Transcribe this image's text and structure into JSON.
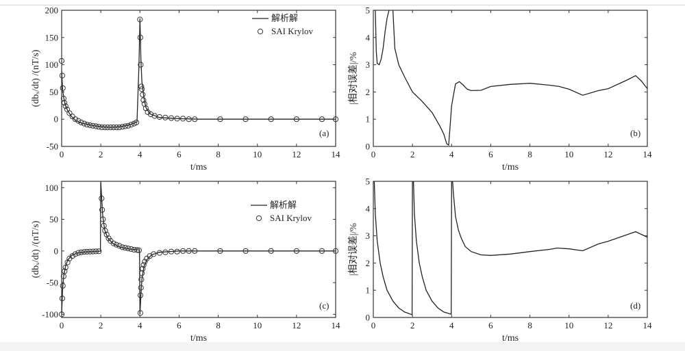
{
  "chart_data": [
    {
      "panel_label": "(a)",
      "type": "line",
      "xlabel": "t/ms",
      "ylabel": "(dbₓ/dt) /(nT/s)",
      "xlim": [
        0,
        14
      ],
      "ylim": [
        -50,
        200
      ],
      "xticks": [
        0,
        2,
        4,
        6,
        8,
        10,
        12,
        14
      ],
      "yticks": [
        -50,
        0,
        50,
        100,
        150,
        200
      ],
      "legend_position": "top-right",
      "series": [
        {
          "name": "解析解",
          "style": "line",
          "x": [
            0,
            0.05,
            0.1,
            0.2,
            0.3,
            0.5,
            0.7,
            1.0,
            1.5,
            2.0,
            2.5,
            3.0,
            3.5,
            3.85,
            3.95,
            4.0,
            4.05,
            4.1,
            4.2,
            4.3,
            4.5,
            5.0,
            6.0,
            7.0,
            8.0,
            10.0,
            12.0,
            14.0
          ],
          "y": [
            90,
            55,
            40,
            25,
            16,
            5,
            -2,
            -7,
            -11,
            -14,
            -15,
            -14,
            -10,
            -5,
            100,
            185,
            110,
            70,
            40,
            22,
            10,
            3,
            1,
            0,
            0,
            0,
            0,
            0
          ]
        },
        {
          "name": "SAI Krylov",
          "style": "circle",
          "x": [
            0,
            0.03,
            0.06,
            0.1,
            0.14,
            0.2,
            0.28,
            0.4,
            0.55,
            0.7,
            0.85,
            1.0,
            1.15,
            1.3,
            1.45,
            1.6,
            1.75,
            1.9,
            2.05,
            2.2,
            2.35,
            2.5,
            2.65,
            2.8,
            2.95,
            3.1,
            3.25,
            3.4,
            3.55,
            3.7,
            3.82,
            4.0,
            4.02,
            4.04,
            4.07,
            4.1,
            4.14,
            4.18,
            4.23,
            4.3,
            4.4,
            4.55,
            4.75,
            5.0,
            5.3,
            5.6,
            5.9,
            6.2,
            6.5,
            6.8,
            8.1,
            9.4,
            10.7,
            12.0,
            13.3,
            14.0
          ],
          "y": [
            107,
            80,
            57,
            38,
            30,
            24,
            18,
            11,
            5,
            0,
            -3,
            -6,
            -8,
            -10,
            -11,
            -12,
            -13,
            -14,
            -15,
            -15,
            -15,
            -15,
            -15,
            -15,
            -15,
            -14,
            -13,
            -12,
            -10,
            -8,
            -6,
            183,
            150,
            100,
            60,
            55,
            45,
            35,
            28,
            20,
            13,
            9,
            6,
            4,
            3,
            2,
            1,
            1,
            0,
            0,
            0,
            0,
            0,
            0,
            0,
            0
          ]
        }
      ]
    },
    {
      "panel_label": "(b)",
      "type": "line",
      "xlabel": "t/ms",
      "ylabel": "|相对误差|/%",
      "xlim": [
        0,
        14
      ],
      "ylim": [
        0,
        5
      ],
      "xticks": [
        0,
        2,
        4,
        6,
        8,
        10,
        12,
        14
      ],
      "yticks": [
        0,
        1,
        2,
        3,
        4,
        5
      ],
      "series": [
        {
          "style": "line",
          "segments": [
            {
              "x": [
                0.1,
                0.15,
                0.2,
                0.3,
                0.4,
                0.5,
                0.6,
                0.7,
                0.8,
                0.85
              ],
              "y": [
                5.0,
                3.5,
                3.05,
                3.0,
                3.2,
                3.6,
                4.2,
                4.7,
                5.0,
                5.0
              ]
            },
            {
              "x": [
                1.0,
                1.1,
                1.3,
                1.6,
                2.0,
                2.5,
                3.0,
                3.4,
                3.6,
                3.75,
                3.85,
                4.0,
                4.2,
                4.4,
                4.6,
                4.8,
                5.0,
                5.5,
                6.0,
                7.0,
                8.0,
                9.0,
                9.5,
                10.0,
                10.7,
                11.5,
                12.0,
                13.0,
                13.4,
                13.7,
                14.0
              ],
              "y": [
                5.0,
                3.6,
                3.0,
                2.55,
                2.0,
                1.65,
                1.25,
                0.75,
                0.45,
                0.1,
                0.05,
                1.5,
                2.3,
                2.38,
                2.25,
                2.1,
                2.05,
                2.06,
                2.2,
                2.28,
                2.32,
                2.25,
                2.2,
                2.1,
                1.88,
                2.05,
                2.12,
                2.45,
                2.6,
                2.4,
                2.12
              ]
            }
          ]
        }
      ]
    },
    {
      "panel_label": "(c)",
      "type": "line",
      "xlabel": "t/ms",
      "ylabel": "(dbₓ/dt) /(nT/s)",
      "xlim": [
        0,
        14
      ],
      "ylim": [
        -105,
        110
      ],
      "xticks": [
        0,
        2,
        4,
        6,
        8,
        10,
        12,
        14
      ],
      "yticks": [
        -100,
        -50,
        0,
        50,
        100
      ],
      "legend_position": "top-right",
      "series": [
        {
          "name": "解析解",
          "style": "line",
          "x": [
            0,
            0.05,
            0.1,
            0.2,
            0.3,
            0.5,
            0.8,
            1.2,
            1.6,
            1.98,
            2.0,
            2.05,
            2.1,
            2.2,
            2.35,
            2.6,
            3.0,
            3.5,
            3.98,
            4.0,
            4.05,
            4.1,
            4.2,
            4.35,
            4.6,
            5.0,
            6.0,
            8.0,
            10.0,
            14.0
          ],
          "y": [
            -100,
            -60,
            -40,
            -24,
            -15,
            -7,
            -3,
            -1.5,
            -0.8,
            -0.3,
            110,
            80,
            55,
            33,
            21,
            12,
            6,
            3,
            1.5,
            -100,
            -70,
            -45,
            -25,
            -14,
            -6,
            -2,
            0,
            0,
            0,
            0
          ]
        },
        {
          "name": "SAI Krylov",
          "style": "circle",
          "x": [
            0,
            0.03,
            0.06,
            0.1,
            0.15,
            0.2,
            0.3,
            0.4,
            0.55,
            0.7,
            0.85,
            1.0,
            1.15,
            1.3,
            1.45,
            1.6,
            1.75,
            1.9,
            2.04,
            2.07,
            2.11,
            2.16,
            2.22,
            2.3,
            2.4,
            2.5,
            2.65,
            2.8,
            2.95,
            3.1,
            3.25,
            3.4,
            3.55,
            3.7,
            3.85,
            3.95,
            4.02,
            4.03,
            4.05,
            4.07,
            4.1,
            4.14,
            4.19,
            4.25,
            4.35,
            4.5,
            4.7,
            5.0,
            5.3,
            5.6,
            5.9,
            6.2,
            6.5,
            6.8,
            8.1,
            9.4,
            10.7,
            12.0,
            13.3,
            14.0
          ],
          "y": [
            -100,
            -75,
            -55,
            -40,
            -32,
            -26,
            -18,
            -12,
            -8,
            -5,
            -3,
            -2,
            -1.5,
            -1.2,
            -1,
            -0.8,
            -0.6,
            -0.4,
            83,
            65,
            50,
            40,
            32,
            26,
            20,
            16,
            12,
            10,
            8,
            6,
            5,
            4,
            3,
            2,
            1.5,
            1,
            -98,
            -70,
            -58,
            -45,
            -35,
            -28,
            -22,
            -17,
            -12,
            -8,
            -5,
            -3,
            -2,
            -1,
            -1,
            0,
            0,
            0,
            0,
            0,
            0,
            0,
            0,
            0
          ]
        }
      ]
    },
    {
      "panel_label": "(d)",
      "type": "line",
      "xlabel": "t/ms",
      "ylabel": "|相对误差|/%",
      "xlim": [
        0,
        14
      ],
      "ylim": [
        0,
        5
      ],
      "xticks": [
        0,
        2,
        4,
        6,
        8,
        10,
        12,
        14
      ],
      "yticks": [
        0,
        1,
        2,
        3,
        4,
        5
      ],
      "series": [
        {
          "style": "line",
          "segments": [
            {
              "x": [
                0.05,
                0.1,
                0.2,
                0.35,
                0.5,
                0.7,
                1.0,
                1.3,
                1.6,
                1.98,
                2.0
              ],
              "y": [
                5.0,
                3.8,
                2.8,
                2.0,
                1.5,
                1.0,
                0.6,
                0.35,
                0.2,
                0.1,
                5.0
              ]
            },
            {
              "x": [
                2.05,
                2.1,
                2.2,
                2.35,
                2.5,
                2.7,
                3.0,
                3.3,
                3.6,
                3.98,
                4.0
              ],
              "y": [
                5.0,
                3.8,
                2.8,
                2.0,
                1.5,
                1.0,
                0.6,
                0.35,
                0.2,
                0.12,
                5.0
              ]
            },
            {
              "x": [
                4.05,
                4.1,
                4.2,
                4.35,
                4.5,
                4.7,
                5.0,
                5.5,
                6.0,
                7.0,
                8.0,
                9.0,
                9.4,
                10.0,
                10.7,
                11.5,
                12.0,
                13.0,
                13.4,
                13.7,
                14.0
              ],
              "y": [
                5.0,
                4.5,
                3.7,
                3.2,
                2.9,
                2.6,
                2.42,
                2.3,
                2.28,
                2.33,
                2.42,
                2.5,
                2.55,
                2.52,
                2.45,
                2.7,
                2.8,
                3.05,
                3.15,
                3.05,
                2.95
              ]
            }
          ]
        }
      ]
    }
  ]
}
